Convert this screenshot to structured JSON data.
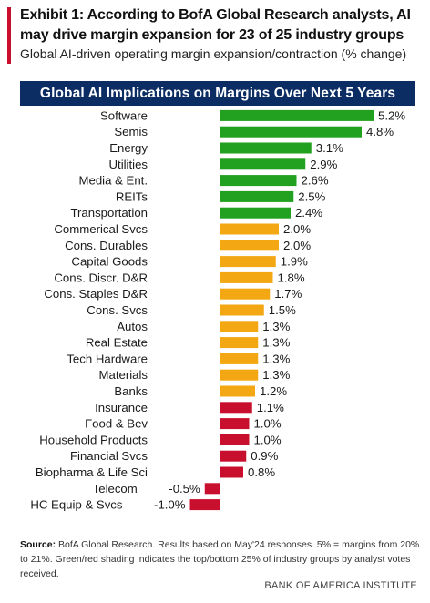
{
  "header": {
    "title": "Exhibit 1: According to BofA Global Research analysts, AI may drive margin expansion for 23 of 25 industry groups",
    "subtitle": "Global AI-driven operating margin expansion/contraction (% change)"
  },
  "chart_data": {
    "type": "bar",
    "orientation": "horizontal",
    "title": "Global AI Implications on Margins Over Next 5 Years",
    "categories": [
      "Software",
      "Semis",
      "Energy",
      "Utilities",
      "Media & Ent.",
      "REITs",
      "Transportation",
      "Commerical Svcs",
      "Cons. Durables",
      "Capital Goods",
      "Cons. Discr. D&R",
      "Cons. Staples D&R",
      "Cons. Svcs",
      "Autos",
      "Real Estate",
      "Tech Hardware",
      "Materials",
      "Banks",
      "Insurance",
      "Food & Bev",
      "Household Products",
      "Financial Svcs",
      "Biopharma & Life Sci",
      "Telecom",
      "HC Equip & Svcs"
    ],
    "values": [
      5.2,
      4.8,
      3.1,
      2.9,
      2.6,
      2.5,
      2.4,
      2.0,
      2.0,
      1.9,
      1.8,
      1.7,
      1.5,
      1.3,
      1.3,
      1.3,
      1.3,
      1.2,
      1.1,
      1.0,
      1.0,
      0.9,
      0.8,
      -0.5,
      -1.0
    ],
    "labels": [
      "5.2%",
      "4.8%",
      "3.1%",
      "2.9%",
      "2.6%",
      "2.5%",
      "2.4%",
      "2.0%",
      "2.0%",
      "1.9%",
      "1.8%",
      "1.7%",
      "1.5%",
      "1.3%",
      "1.3%",
      "1.3%",
      "1.3%",
      "1.2%",
      "1.1%",
      "1.0%",
      "1.0%",
      "0.9%",
      "0.8%",
      "-0.5%",
      "-1.0%"
    ],
    "groups": [
      "top",
      "top",
      "top",
      "top",
      "top",
      "top",
      "top",
      "mid",
      "mid",
      "mid",
      "mid",
      "mid",
      "mid",
      "mid",
      "mid",
      "mid",
      "mid",
      "mid",
      "bottom",
      "bottom",
      "bottom",
      "bottom",
      "bottom",
      "bottom",
      "bottom"
    ],
    "colors": {
      "top": "#22a01f",
      "mid": "#f3a712",
      "bottom": "#c8102e"
    },
    "xlim": [
      -1.0,
      5.2
    ],
    "grid": false,
    "legend": "none"
  },
  "source": {
    "label": "Source:",
    "text": "BofA Global Research. Results based on May'24 responses. 5% = margins from 20% to 21%. Green/red shading indicates the top/bottom 25% of industry groups by analyst votes received."
  },
  "footer": "BANK OF AMERICA INSTITUTE",
  "accent_color": "#c8102e",
  "banner_color": "#0b2d63"
}
